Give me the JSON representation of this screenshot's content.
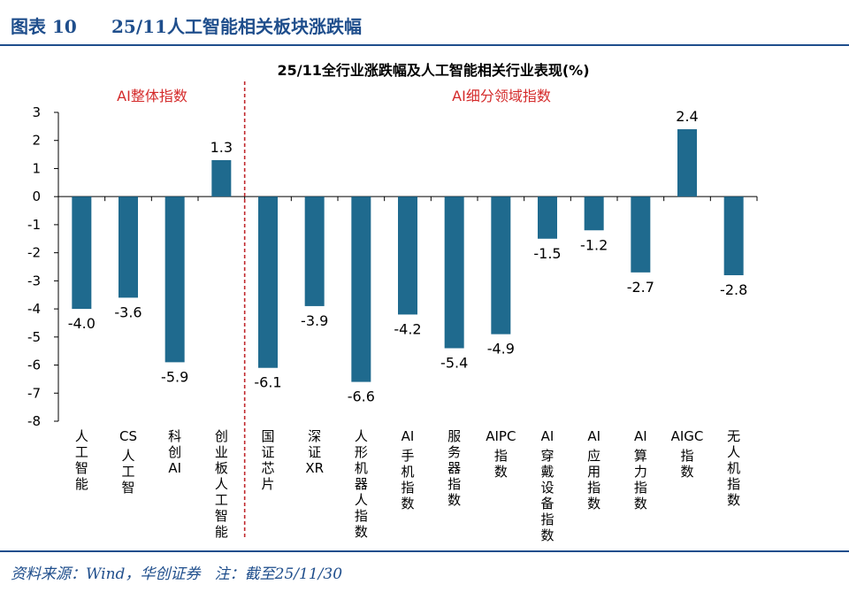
{
  "figure": {
    "label": "图表 10",
    "title": "25/11人工智能相关板块涨跌幅"
  },
  "footer": {
    "source": "资料来源：Wind，华创证券   注：截至25/11/30"
  },
  "chart_data": {
    "type": "bar",
    "title": "25/11全行业涨跌幅及人工智能相关行业表现(%)",
    "groups": [
      "AI整体指数",
      "AI细分领域指数"
    ],
    "categories": [
      "人工智能",
      "CS人工智",
      "科创AI",
      "创业板人工智能",
      "国证芯片",
      "深证XR",
      "人形机器人指数",
      "AI手机指数",
      "服务器指数",
      "AIPC指数",
      "AI穿戴设备指数",
      "AI应用指数",
      "AI算力指数",
      "AIGC指数",
      "无人机指数"
    ],
    "values": [
      -4.0,
      -3.6,
      -5.9,
      1.3,
      -6.1,
      -3.9,
      -6.6,
      -4.2,
      -5.4,
      -4.9,
      -1.5,
      -1.2,
      -2.7,
      2.4,
      -2.8
    ],
    "data_labels": [
      "-4.0",
      "-3.6",
      "-5.9",
      "1.3",
      "-6.1",
      "-3.9",
      "-6.6",
      "-4.2",
      "-5.4",
      "-4.9",
      "-1.5",
      "-1.2",
      "-2.7",
      "2.4",
      "-2.8"
    ],
    "ylim": [
      -8,
      3
    ],
    "yticks": [
      3,
      2,
      1,
      0,
      -1,
      -2,
      -3,
      -4,
      -5,
      -6,
      -7,
      -8
    ],
    "divider_after_index": 3,
    "xlabel": "",
    "ylabel": "",
    "grid": false,
    "colors": {
      "bar": "#1f6a8e",
      "divider": "#c0282d",
      "group_label": "#d42a2a",
      "axis": "#000000",
      "text": "#000000"
    }
  }
}
